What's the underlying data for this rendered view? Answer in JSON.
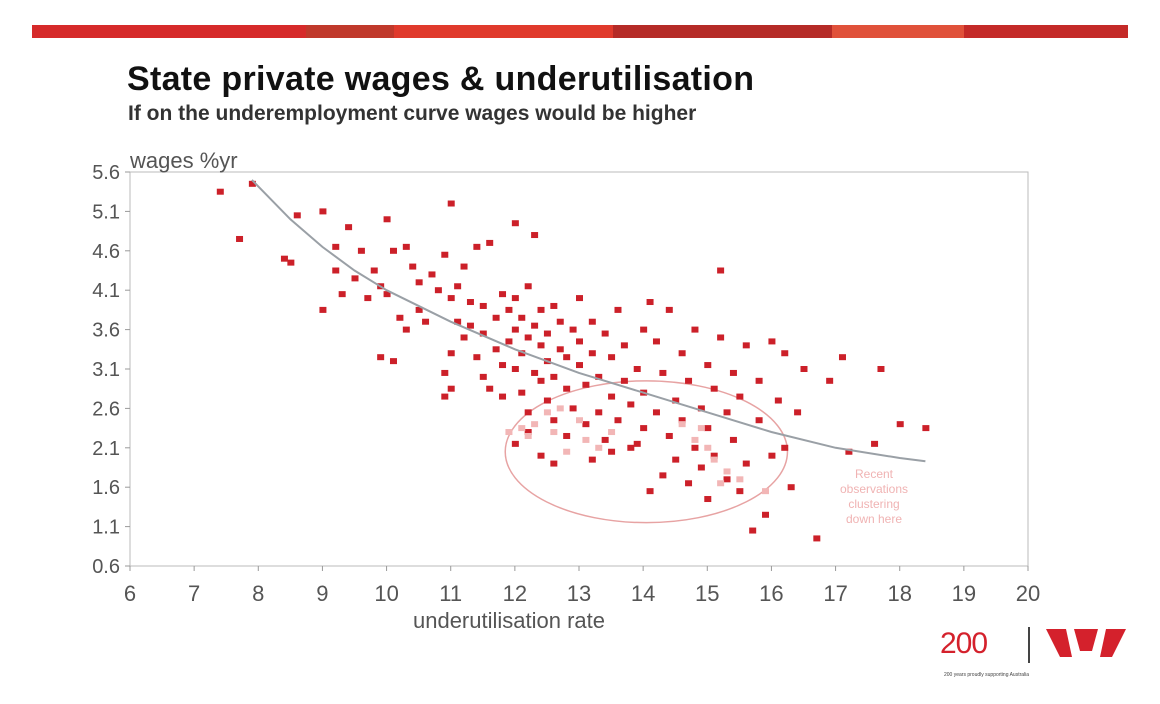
{
  "colors": {
    "bar": [
      "#d62a2a",
      "#c0392b",
      "#e03a2c",
      "#b52b27",
      "#e0513a",
      "#c42a28"
    ],
    "point": "#cc2029",
    "recent_point": "#f2b6b6",
    "curve": "#9aa0a6",
    "ellipse": "#e7a3a3",
    "annotation": "#f0b3b3",
    "brand": "#d4212c"
  },
  "logo": {
    "number": "200",
    "tagline": "200 years proudly supporting Australia",
    "mark_icon": "westpac-w-icon"
  },
  "chart_data": {
    "type": "scatter",
    "title": "State private wages & underutilisation",
    "subtitle": "If on the underemployment curve wages would be higher",
    "xlabel": "underutilisation rate",
    "ylabel": "wages %yr",
    "xlim": [
      6,
      20
    ],
    "ylim": [
      0.6,
      5.6
    ],
    "xticks": [
      "6",
      "7",
      "8",
      "9",
      "10",
      "11",
      "12",
      "13",
      "14",
      "15",
      "16",
      "17",
      "18",
      "19",
      "20"
    ],
    "yticks": [
      "0.6",
      "1.1",
      "1.6",
      "2.1",
      "2.6",
      "3.1",
      "3.6",
      "4.1",
      "4.6",
      "5.1",
      "5.6"
    ],
    "grid": false,
    "annotation": "Recent observations clustering down here",
    "curve": {
      "x": [
        7.9,
        8.5,
        9,
        9.5,
        10,
        11,
        12,
        13,
        14,
        15,
        16,
        17,
        18,
        18.4
      ],
      "y": [
        5.5,
        5.0,
        4.65,
        4.35,
        4.1,
        3.7,
        3.35,
        3.05,
        2.8,
        2.55,
        2.3,
        2.1,
        1.97,
        1.93
      ]
    },
    "series": [
      {
        "values": [
          [
            7.4,
            5.35
          ],
          [
            7.7,
            4.75
          ],
          [
            7.9,
            5.45
          ],
          [
            8.4,
            4.5
          ],
          [
            8.5,
            4.45
          ],
          [
            8.6,
            5.05
          ],
          [
            9.0,
            5.1
          ],
          [
            9.0,
            3.85
          ],
          [
            9.2,
            4.35
          ],
          [
            9.2,
            4.65
          ],
          [
            9.3,
            4.05
          ],
          [
            9.4,
            4.9
          ],
          [
            9.5,
            4.25
          ],
          [
            9.6,
            4.6
          ],
          [
            9.7,
            4.0
          ],
          [
            9.8,
            4.35
          ],
          [
            9.9,
            3.25
          ],
          [
            9.9,
            4.15
          ],
          [
            10.0,
            4.05
          ],
          [
            10.0,
            5.0
          ],
          [
            10.1,
            3.2
          ],
          [
            10.1,
            4.6
          ],
          [
            10.2,
            3.75
          ],
          [
            10.3,
            4.65
          ],
          [
            10.3,
            3.6
          ],
          [
            10.4,
            4.4
          ],
          [
            10.5,
            3.85
          ],
          [
            10.5,
            4.2
          ],
          [
            10.6,
            3.7
          ],
          [
            10.7,
            4.3
          ],
          [
            10.8,
            4.1
          ],
          [
            10.9,
            4.55
          ],
          [
            10.9,
            3.05
          ],
          [
            11.0,
            5.2
          ],
          [
            11.0,
            4.0
          ],
          [
            11.0,
            3.3
          ],
          [
            11.0,
            2.85
          ],
          [
            10.9,
            2.75
          ],
          [
            11.1,
            3.7
          ],
          [
            11.1,
            4.15
          ],
          [
            11.2,
            3.5
          ],
          [
            11.2,
            4.4
          ],
          [
            11.3,
            3.65
          ],
          [
            11.3,
            3.95
          ],
          [
            11.4,
            3.25
          ],
          [
            11.4,
            4.65
          ],
          [
            11.5,
            3.0
          ],
          [
            11.5,
            3.55
          ],
          [
            11.5,
            3.9
          ],
          [
            11.6,
            2.85
          ],
          [
            11.6,
            4.7
          ],
          [
            11.7,
            3.35
          ],
          [
            11.7,
            3.75
          ],
          [
            11.8,
            2.75
          ],
          [
            11.8,
            3.15
          ],
          [
            11.8,
            4.05
          ],
          [
            11.9,
            3.45
          ],
          [
            11.9,
            3.85
          ],
          [
            12.0,
            3.1
          ],
          [
            12.0,
            3.6
          ],
          [
            12.0,
            4.0
          ],
          [
            12.0,
            4.95
          ],
          [
            12.1,
            2.8
          ],
          [
            12.1,
            3.3
          ],
          [
            12.1,
            3.75
          ],
          [
            12.2,
            3.5
          ],
          [
            12.2,
            4.15
          ],
          [
            12.2,
            2.55
          ],
          [
            12.3,
            3.05
          ],
          [
            12.3,
            3.65
          ],
          [
            12.3,
            4.8
          ],
          [
            12.4,
            2.95
          ],
          [
            12.4,
            3.4
          ],
          [
            12.4,
            3.85
          ],
          [
            12.5,
            2.7
          ],
          [
            12.5,
            3.2
          ],
          [
            12.5,
            3.55
          ],
          [
            12.6,
            3.0
          ],
          [
            12.6,
            3.9
          ],
          [
            12.6,
            2.45
          ],
          [
            12.7,
            3.35
          ],
          [
            12.7,
            3.7
          ],
          [
            12.8,
            2.85
          ],
          [
            12.8,
            3.25
          ],
          [
            12.9,
            3.6
          ],
          [
            12.9,
            2.6
          ],
          [
            13.0,
            3.15
          ],
          [
            13.0,
            3.45
          ],
          [
            13.0,
            4.0
          ],
          [
            13.1,
            2.4
          ],
          [
            13.1,
            2.9
          ],
          [
            13.2,
            3.7
          ],
          [
            13.2,
            3.3
          ],
          [
            13.3,
            2.55
          ],
          [
            13.3,
            3.0
          ],
          [
            13.4,
            3.55
          ],
          [
            13.4,
            2.2
          ],
          [
            13.5,
            3.25
          ],
          [
            13.5,
            2.75
          ],
          [
            13.6,
            2.45
          ],
          [
            13.6,
            3.85
          ],
          [
            13.7,
            2.95
          ],
          [
            13.7,
            3.4
          ],
          [
            13.8,
            2.65
          ],
          [
            13.8,
            2.1
          ],
          [
            13.9,
            3.1
          ],
          [
            14.0,
            3.6
          ],
          [
            14.0,
            2.35
          ],
          [
            14.0,
            2.8
          ],
          [
            14.1,
            3.95
          ],
          [
            14.1,
            1.55
          ],
          [
            14.2,
            3.45
          ],
          [
            14.2,
            2.55
          ],
          [
            14.3,
            1.75
          ],
          [
            14.3,
            3.05
          ],
          [
            14.4,
            2.25
          ],
          [
            14.4,
            3.85
          ],
          [
            14.5,
            2.7
          ],
          [
            14.5,
            1.95
          ],
          [
            14.6,
            3.3
          ],
          [
            14.6,
            2.45
          ],
          [
            14.7,
            1.65
          ],
          [
            14.7,
            2.95
          ],
          [
            14.8,
            2.1
          ],
          [
            14.8,
            3.6
          ],
          [
            14.9,
            2.6
          ],
          [
            14.9,
            1.85
          ],
          [
            15.0,
            3.15
          ],
          [
            15.0,
            2.35
          ],
          [
            15.0,
            1.45
          ],
          [
            15.1,
            2.85
          ],
          [
            15.1,
            2.0
          ],
          [
            15.2,
            3.5
          ],
          [
            15.2,
            4.35
          ],
          [
            15.3,
            1.7
          ],
          [
            15.3,
            2.55
          ],
          [
            15.4,
            3.05
          ],
          [
            15.4,
            2.2
          ],
          [
            15.5,
            1.55
          ],
          [
            15.5,
            2.75
          ],
          [
            15.6,
            3.4
          ],
          [
            15.6,
            1.9
          ],
          [
            15.7,
            1.05
          ],
          [
            15.8,
            2.45
          ],
          [
            15.8,
            2.95
          ],
          [
            15.9,
            1.25
          ],
          [
            16.0,
            3.45
          ],
          [
            16.0,
            2.0
          ],
          [
            16.1,
            2.7
          ],
          [
            16.2,
            3.3
          ],
          [
            16.2,
            2.1
          ],
          [
            16.3,
            1.6
          ],
          [
            16.4,
            2.55
          ],
          [
            16.5,
            3.1
          ],
          [
            16.7,
            0.95
          ],
          [
            16.9,
            2.95
          ],
          [
            17.1,
            3.25
          ],
          [
            17.2,
            2.05
          ],
          [
            17.6,
            2.15
          ],
          [
            17.7,
            3.1
          ],
          [
            18.0,
            2.4
          ],
          [
            18.4,
            2.35
          ],
          [
            12.4,
            2.0
          ],
          [
            12.6,
            1.9
          ],
          [
            12.8,
            2.25
          ],
          [
            13.2,
            1.95
          ],
          [
            13.5,
            2.05
          ],
          [
            13.9,
            2.15
          ],
          [
            12.2,
            2.3
          ],
          [
            12.0,
            2.15
          ]
        ]
      },
      {
        "values": [
          [
            11.9,
            2.3
          ],
          [
            12.1,
            2.35
          ],
          [
            12.2,
            2.25
          ],
          [
            12.3,
            2.4
          ],
          [
            12.5,
            2.55
          ],
          [
            12.6,
            2.3
          ],
          [
            12.7,
            2.6
          ],
          [
            12.8,
            2.05
          ],
          [
            13.0,
            2.45
          ],
          [
            13.1,
            2.2
          ],
          [
            13.3,
            2.1
          ],
          [
            13.5,
            2.3
          ],
          [
            14.6,
            2.4
          ],
          [
            14.8,
            2.2
          ],
          [
            14.9,
            2.35
          ],
          [
            15.0,
            2.1
          ],
          [
            15.1,
            1.95
          ],
          [
            15.2,
            1.65
          ],
          [
            15.3,
            1.8
          ],
          [
            15.5,
            1.7
          ],
          [
            15.9,
            1.55
          ]
        ]
      }
    ],
    "ellipse": {
      "cx": 14.05,
      "cy": 2.05,
      "rx": 2.2,
      "ry": 0.9
    }
  }
}
